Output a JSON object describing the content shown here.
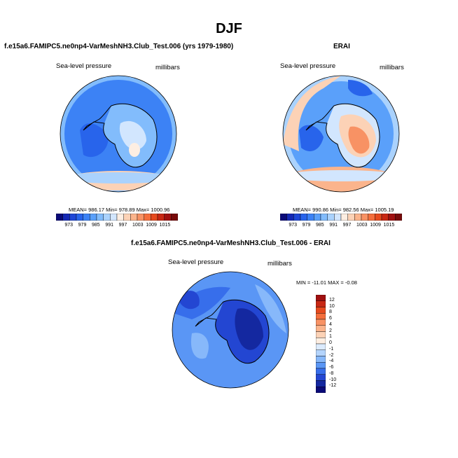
{
  "figure_title": "DJF",
  "panels": {
    "model": {
      "title": "f.e15a6.FAMIPC5.ne0np4-VarMeshNH3.Club_Test.006 (yrs 1979-1980)",
      "field_label": "Sea-level pressure",
      "units_label": "millibars",
      "stats": "MEAN= 986.17   Min= 978.89   Max= 1000.96"
    },
    "obs": {
      "title": "ERAI",
      "field_label": "Sea-level pressure",
      "units_label": "millibars",
      "stats": "MEAN= 990.86   Min= 982.56   Max= 1005.19"
    },
    "diff": {
      "title": "f.e15a6.FAMIPC5.ne0np4-VarMeshNH3.Club_Test.006 - ERAI",
      "field_label": "Sea-level pressure",
      "units_label": "millibars",
      "stats": "MIN = -11.01  MAX = -0.08"
    }
  },
  "colorbar_abs": {
    "tick_labels": [
      "973",
      "979",
      "985",
      "991",
      "997",
      "1003",
      "1009",
      "1015"
    ],
    "colors": [
      "#0a0a78",
      "#1428b4",
      "#1e46d7",
      "#2864eb",
      "#3c82f5",
      "#5aa0fa",
      "#82bcfc",
      "#aad2fd",
      "#d2e6fe",
      "#fdeee2",
      "#fcd2b6",
      "#fbb48c",
      "#f89264",
      "#f46e3c",
      "#e64a1e",
      "#c82814",
      "#a01010",
      "#780a0a"
    ]
  },
  "colorbar_diff": {
    "tick_labels": [
      "12",
      "10",
      "8",
      "6",
      "4",
      "2",
      "1",
      "0",
      "-1",
      "-2",
      "-4",
      "-6",
      "-8",
      "-10",
      "-12"
    ],
    "colors": [
      "#a01010",
      "#c82814",
      "#e64a1e",
      "#f46e3c",
      "#f89264",
      "#fbb48c",
      "#fcd2b6",
      "#fdeee2",
      "#dcebfd",
      "#b4d4fc",
      "#87b8fa",
      "#5a96f5",
      "#376eeb",
      "#2346d2",
      "#1428a0",
      "#0a0a78"
    ]
  },
  "colors": {
    "ocean_mid": "#3c82f5",
    "ocean_deep": "#2864eb",
    "land_light": "#d2e6fe",
    "coast": "#000000"
  }
}
